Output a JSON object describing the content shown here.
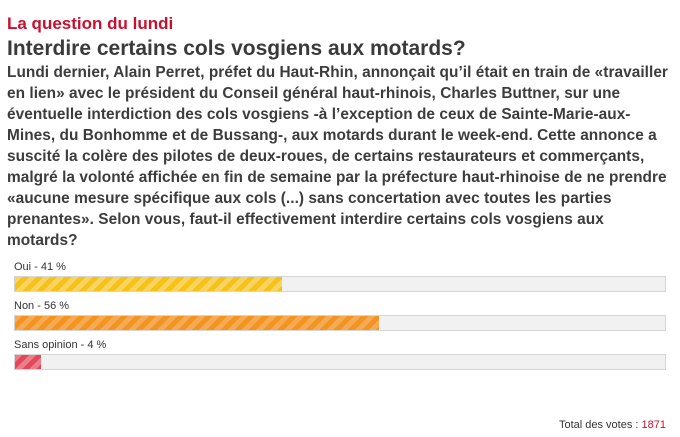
{
  "poll": {
    "kicker": "La question du lundi",
    "question": "Interdire certains cols vosgiens aux motards?",
    "intro": "Lundi dernier, Alain Perret, préfet du Haut-Rhin, annonçait qu’il était en train de «travailler en lien» avec le président du Conseil général haut-rhinois, Charles Buttner, sur une éventuelle interdiction des cols vosgiens -à l’exception de ceux de Sainte-Marie-aux-Mines, du Bonhomme et de Bussang-, aux motards durant le week-end. Cette annonce a suscité la colère des pilotes de deux-roues, de certains restaurateurs et commerçants, malgré la volonté affichée en fin de semaine par la préfecture haut-rhinoise de ne prendre «aucune mesure spécifique aux cols (...) sans concertation avec toutes les parties prenantes». Selon vous, faut-il effectivement interdire certains cols vosgiens aux motards?",
    "options": [
      {
        "label": "Oui - 41 %",
        "percent": 41,
        "color": "#f6c21a"
      },
      {
        "label": "Non - 56 %",
        "percent": 56,
        "color": "#f39322"
      },
      {
        "label": "Sans opinion - 4 %",
        "percent": 4,
        "color": "#e4475a"
      }
    ],
    "total_label": "Total des votes : ",
    "total_count": "1871"
  }
}
